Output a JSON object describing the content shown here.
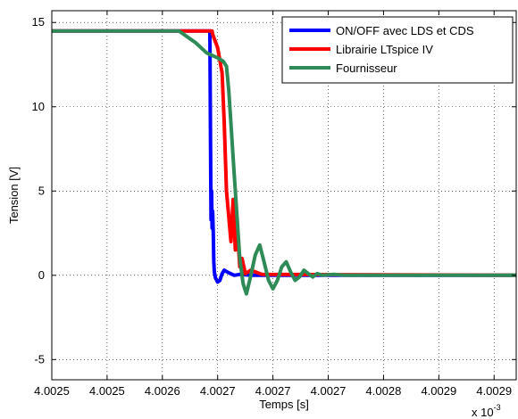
{
  "chart_data": {
    "type": "line",
    "xlabel": "Temps [s]",
    "ylabel": "Tension [V]",
    "x_exponent_label": "x 10",
    "x_exponent_power": "-3",
    "xlim": [
      4.00255,
      4.00297
    ],
    "ylim": [
      -6.2,
      15.7
    ],
    "grid": true,
    "legend_position": "top-right",
    "x_ticks": [
      {
        "value": 4.00255,
        "label": "4.0025"
      },
      {
        "value": 4.0026,
        "label": "4.0025"
      },
      {
        "value": 4.00265,
        "label": "4.0026"
      },
      {
        "value": 4.0027,
        "label": "4.0027"
      },
      {
        "value": 4.00275,
        "label": "4.0027"
      },
      {
        "value": 4.0028,
        "label": "4.0027"
      },
      {
        "value": 4.00285,
        "label": "4.0028"
      },
      {
        "value": 4.0029,
        "label": "4.0029"
      },
      {
        "value": 4.00295,
        "label": "4.0029"
      }
    ],
    "y_ticks": [
      {
        "value": -5,
        "label": "-5"
      },
      {
        "value": 0,
        "label": "0"
      },
      {
        "value": 5,
        "label": "5"
      },
      {
        "value": 10,
        "label": "10"
      },
      {
        "value": 15,
        "label": "15"
      }
    ],
    "series": [
      {
        "name": "ON/OFF avec LDS et CDS",
        "color": "#0000ff",
        "x": [
          4.00255,
          4.002693,
          4.0026935,
          4.002694,
          4.0026945,
          4.002695,
          4.0026955,
          4.002696,
          4.0026965,
          4.002697,
          4.002698,
          4.0027,
          4.002702,
          4.002704,
          4.002706,
          4.00271,
          4.002715,
          4.00272,
          4.00273,
          4.00297
        ],
        "y": [
          14.5,
          14.5,
          8.0,
          3.3,
          5.0,
          2.8,
          3.8,
          2.5,
          0.8,
          0.2,
          -0.15,
          -0.4,
          -0.3,
          0.1,
          0.3,
          0.15,
          0.0,
          0.05,
          0.0,
          0.0
        ]
      },
      {
        "name": "Librairie LTspice IV",
        "color": "#ff0000",
        "x": [
          4.00255,
          4.002695,
          4.0026955,
          4.0027,
          4.002704,
          4.002706,
          4.002708,
          4.00271,
          4.002712,
          4.002714,
          4.002716,
          4.002718,
          4.00272,
          4.002722,
          4.002725,
          4.00273,
          4.00274,
          4.00297
        ],
        "y": [
          14.5,
          14.5,
          14.3,
          13.5,
          12.0,
          9.0,
          5.0,
          3.5,
          2.0,
          4.5,
          1.5,
          2.5,
          0.5,
          1.0,
          0.1,
          0.3,
          0.05,
          0.0
        ]
      },
      {
        "name": "Fournisseur",
        "color": "#2e8b57",
        "x": [
          4.00255,
          4.0026,
          4.002665,
          4.00268,
          4.00269,
          4.0027,
          4.002705,
          4.002708,
          4.00271,
          4.002712,
          4.002714,
          4.002716,
          4.002718,
          4.00272,
          4.002723,
          4.002726,
          4.00273,
          4.002734,
          4.002738,
          4.002742,
          4.002746,
          4.00275,
          4.002754,
          4.002758,
          4.002762,
          4.002766,
          4.00277,
          4.002774,
          4.002778,
          4.002782,
          4.002786,
          4.00279,
          4.002795,
          4.002805,
          4.002815,
          4.00297
        ],
        "y": [
          14.5,
          14.5,
          14.5,
          13.8,
          13.2,
          12.9,
          12.7,
          12.4,
          11.0,
          9.0,
          7.0,
          5.0,
          3.0,
          1.0,
          -0.5,
          -1.1,
          0.0,
          1.2,
          1.8,
          0.8,
          -0.3,
          -0.8,
          -0.3,
          0.5,
          0.8,
          0.2,
          -0.3,
          -0.1,
          0.3,
          0.1,
          -0.1,
          0.1,
          0.0,
          0.05,
          0.0,
          0.0
        ]
      }
    ]
  }
}
